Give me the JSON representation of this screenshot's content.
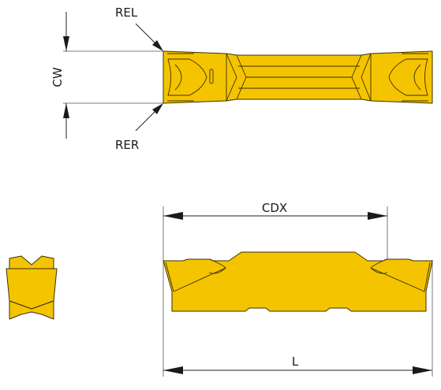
{
  "labels": {
    "rel": "REL",
    "rer": "RER",
    "cw": "CW",
    "cdx": "CDX",
    "l": "L"
  },
  "colors": {
    "insert_fill": "#f5c400",
    "outline": "#3a3000",
    "dimension_line": "#222222"
  }
}
